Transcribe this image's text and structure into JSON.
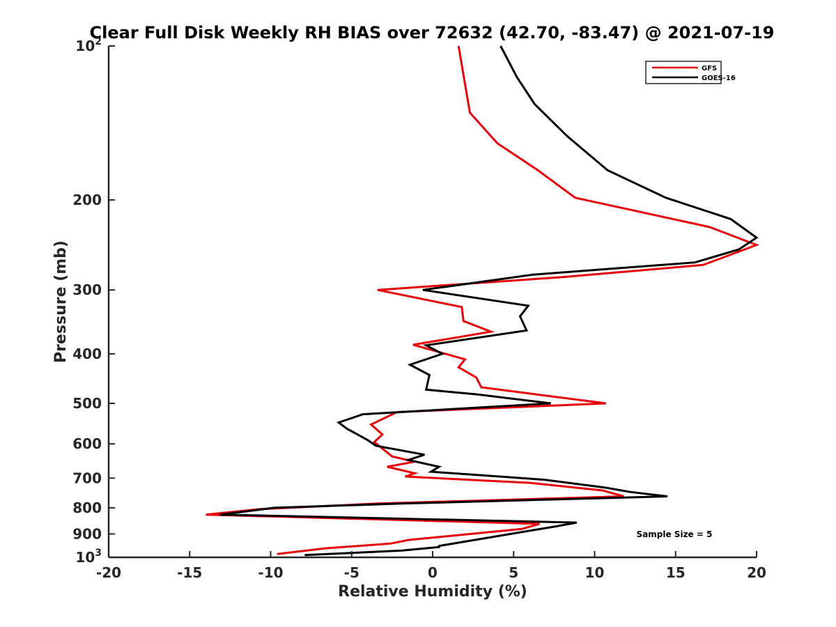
{
  "chart_data": {
    "type": "line",
    "title": "Clear Full Disk Weekly RH BIAS over 72632 (42.70, -83.47) @ 2021-07-19",
    "xlabel": "Relative Humidity (%)",
    "ylabel": "Pressure (mb)",
    "xlim": [
      -20,
      20
    ],
    "ylim": [
      100,
      1000
    ],
    "y_scale": "log",
    "y_reversed": true,
    "grid": false,
    "legend_position": "top-right",
    "x_ticks": [
      "-20",
      "-15",
      "-10",
      "-5",
      "0",
      "5",
      "10",
      "15",
      "20"
    ],
    "y_ticks": [
      {
        "base": "10",
        "exp": "2",
        "value": 100
      },
      {
        "base": "200",
        "exp": "",
        "value": 200
      },
      {
        "base": "300",
        "exp": "",
        "value": 300
      },
      {
        "base": "400",
        "exp": "",
        "value": 400
      },
      {
        "base": "500",
        "exp": "",
        "value": 500
      },
      {
        "base": "600",
        "exp": "",
        "value": 600
      },
      {
        "base": "700",
        "exp": "",
        "value": 700
      },
      {
        "base": "800",
        "exp": "",
        "value": 800
      },
      {
        "base": "900",
        "exp": "",
        "value": 900
      },
      {
        "base": "10",
        "exp": "3",
        "value": 1000
      }
    ],
    "annotation": "Sample Size = 5",
    "series": [
      {
        "name": "GFS",
        "color": "#e8000b",
        "points": [
          [
            1.6,
            100
          ],
          [
            2.3,
            135
          ],
          [
            4.0,
            155
          ],
          [
            6.5,
            175
          ],
          [
            8.8,
            198
          ],
          [
            17.1,
            226
          ],
          [
            20.0,
            245
          ],
          [
            16.7,
            268
          ],
          [
            8.1,
            283
          ],
          [
            -3.4,
            300
          ],
          [
            1.8,
            324
          ],
          [
            1.9,
            345
          ],
          [
            3.6,
            362
          ],
          [
            -1.2,
            384
          ],
          [
            2.0,
            410
          ],
          [
            1.6,
            425
          ],
          [
            2.7,
            445
          ],
          [
            3.0,
            465
          ],
          [
            10.7,
            500
          ],
          [
            -2.2,
            520
          ],
          [
            -3.8,
            550
          ],
          [
            -3.1,
            575
          ],
          [
            -3.6,
            595
          ],
          [
            -2.5,
            635
          ],
          [
            -1.1,
            650
          ],
          [
            -2.8,
            665
          ],
          [
            -1.1,
            685
          ],
          [
            -1.7,
            695
          ],
          [
            6.0,
            715
          ],
          [
            10.5,
            740
          ],
          [
            11.8,
            760
          ],
          [
            -3.4,
            785
          ],
          [
            -10.7,
            805
          ],
          [
            -14.0,
            825
          ],
          [
            6.6,
            860
          ],
          [
            5.5,
            880
          ],
          [
            -1.5,
            925
          ],
          [
            -2.6,
            940
          ],
          [
            -6.6,
            960
          ],
          [
            -9.6,
            985
          ]
        ]
      },
      {
        "name": "GOES-16",
        "color": "#000000",
        "points": [
          [
            4.2,
            100
          ],
          [
            5.2,
            115
          ],
          [
            6.3,
            130
          ],
          [
            8.3,
            150
          ],
          [
            10.8,
            175
          ],
          [
            14.4,
            198
          ],
          [
            18.4,
            218
          ],
          [
            20.0,
            237
          ],
          [
            18.9,
            250
          ],
          [
            16.2,
            265
          ],
          [
            6.2,
            280
          ],
          [
            -0.6,
            300
          ],
          [
            5.9,
            322
          ],
          [
            5.4,
            338
          ],
          [
            5.8,
            360
          ],
          [
            -0.4,
            385
          ],
          [
            0.6,
            400
          ],
          [
            -1.4,
            420
          ],
          [
            -0.2,
            440
          ],
          [
            -0.4,
            470
          ],
          [
            2.7,
            480
          ],
          [
            7.3,
            500
          ],
          [
            -4.3,
            525
          ],
          [
            -5.8,
            545
          ],
          [
            -5.3,
            560
          ],
          [
            -4.0,
            590
          ],
          [
            -3.5,
            605
          ],
          [
            -0.5,
            630
          ],
          [
            -1.5,
            645
          ],
          [
            0.4,
            665
          ],
          [
            -0.1,
            680
          ],
          [
            6.9,
            705
          ],
          [
            10.6,
            730
          ],
          [
            12.2,
            745
          ],
          [
            14.5,
            760
          ],
          [
            -1.9,
            785
          ],
          [
            -9.8,
            800
          ],
          [
            -13.1,
            825
          ],
          [
            8.9,
            855
          ],
          [
            7.6,
            870
          ],
          [
            0.4,
            950
          ],
          [
            0.4,
            955
          ],
          [
            -1.9,
            970
          ],
          [
            -7.9,
            990
          ]
        ]
      }
    ]
  }
}
